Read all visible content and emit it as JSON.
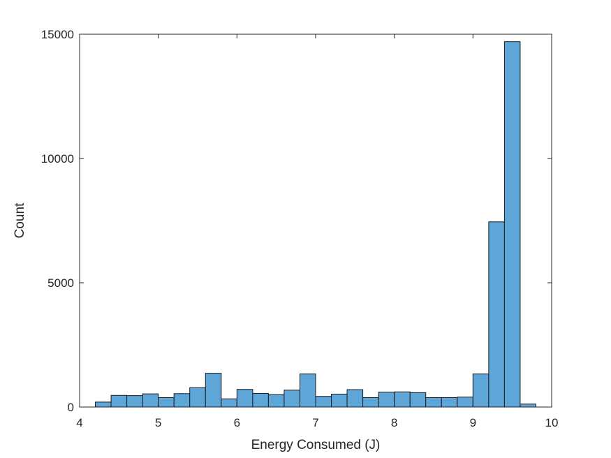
{
  "chart_data": {
    "type": "bar",
    "subtype": "histogram",
    "xlabel": "Energy Consumed (J)",
    "ylabel": "Count",
    "xlim": [
      4,
      10
    ],
    "ylim": [
      0,
      15000
    ],
    "xticks": [
      4,
      5,
      6,
      7,
      8,
      9,
      10
    ],
    "yticks": [
      0,
      5000,
      10000,
      15000
    ],
    "grid": false,
    "bar_color": "#5fa6d8",
    "bar_edge_color": "#1a1a1a",
    "bins": [
      {
        "x0": 4.2,
        "x1": 4.4,
        "count": 200
      },
      {
        "x0": 4.4,
        "x1": 4.6,
        "count": 470
      },
      {
        "x0": 4.6,
        "x1": 4.8,
        "count": 460
      },
      {
        "x0": 4.8,
        "x1": 5.0,
        "count": 530
      },
      {
        "x0": 5.0,
        "x1": 5.2,
        "count": 380
      },
      {
        "x0": 5.2,
        "x1": 5.4,
        "count": 540
      },
      {
        "x0": 5.4,
        "x1": 5.6,
        "count": 780
      },
      {
        "x0": 5.6,
        "x1": 5.8,
        "count": 1360
      },
      {
        "x0": 5.8,
        "x1": 6.0,
        "count": 330
      },
      {
        "x0": 6.0,
        "x1": 6.2,
        "count": 710
      },
      {
        "x0": 6.2,
        "x1": 6.4,
        "count": 550
      },
      {
        "x0": 6.4,
        "x1": 6.6,
        "count": 500
      },
      {
        "x0": 6.6,
        "x1": 6.8,
        "count": 680
      },
      {
        "x0": 6.8,
        "x1": 7.0,
        "count": 1330
      },
      {
        "x0": 7.0,
        "x1": 7.2,
        "count": 430
      },
      {
        "x0": 7.2,
        "x1": 7.4,
        "count": 520
      },
      {
        "x0": 7.4,
        "x1": 7.6,
        "count": 700
      },
      {
        "x0": 7.6,
        "x1": 7.8,
        "count": 380
      },
      {
        "x0": 7.8,
        "x1": 8.0,
        "count": 600
      },
      {
        "x0": 8.0,
        "x1": 8.2,
        "count": 610
      },
      {
        "x0": 8.2,
        "x1": 8.4,
        "count": 580
      },
      {
        "x0": 8.4,
        "x1": 8.6,
        "count": 380
      },
      {
        "x0": 8.6,
        "x1": 8.8,
        "count": 380
      },
      {
        "x0": 8.8,
        "x1": 9.0,
        "count": 400
      },
      {
        "x0": 9.0,
        "x1": 9.2,
        "count": 1330
      },
      {
        "x0": 9.2,
        "x1": 9.4,
        "count": 7450
      },
      {
        "x0": 9.4,
        "x1": 9.6,
        "count": 14700
      },
      {
        "x0": 9.6,
        "x1": 9.8,
        "count": 120
      }
    ]
  }
}
